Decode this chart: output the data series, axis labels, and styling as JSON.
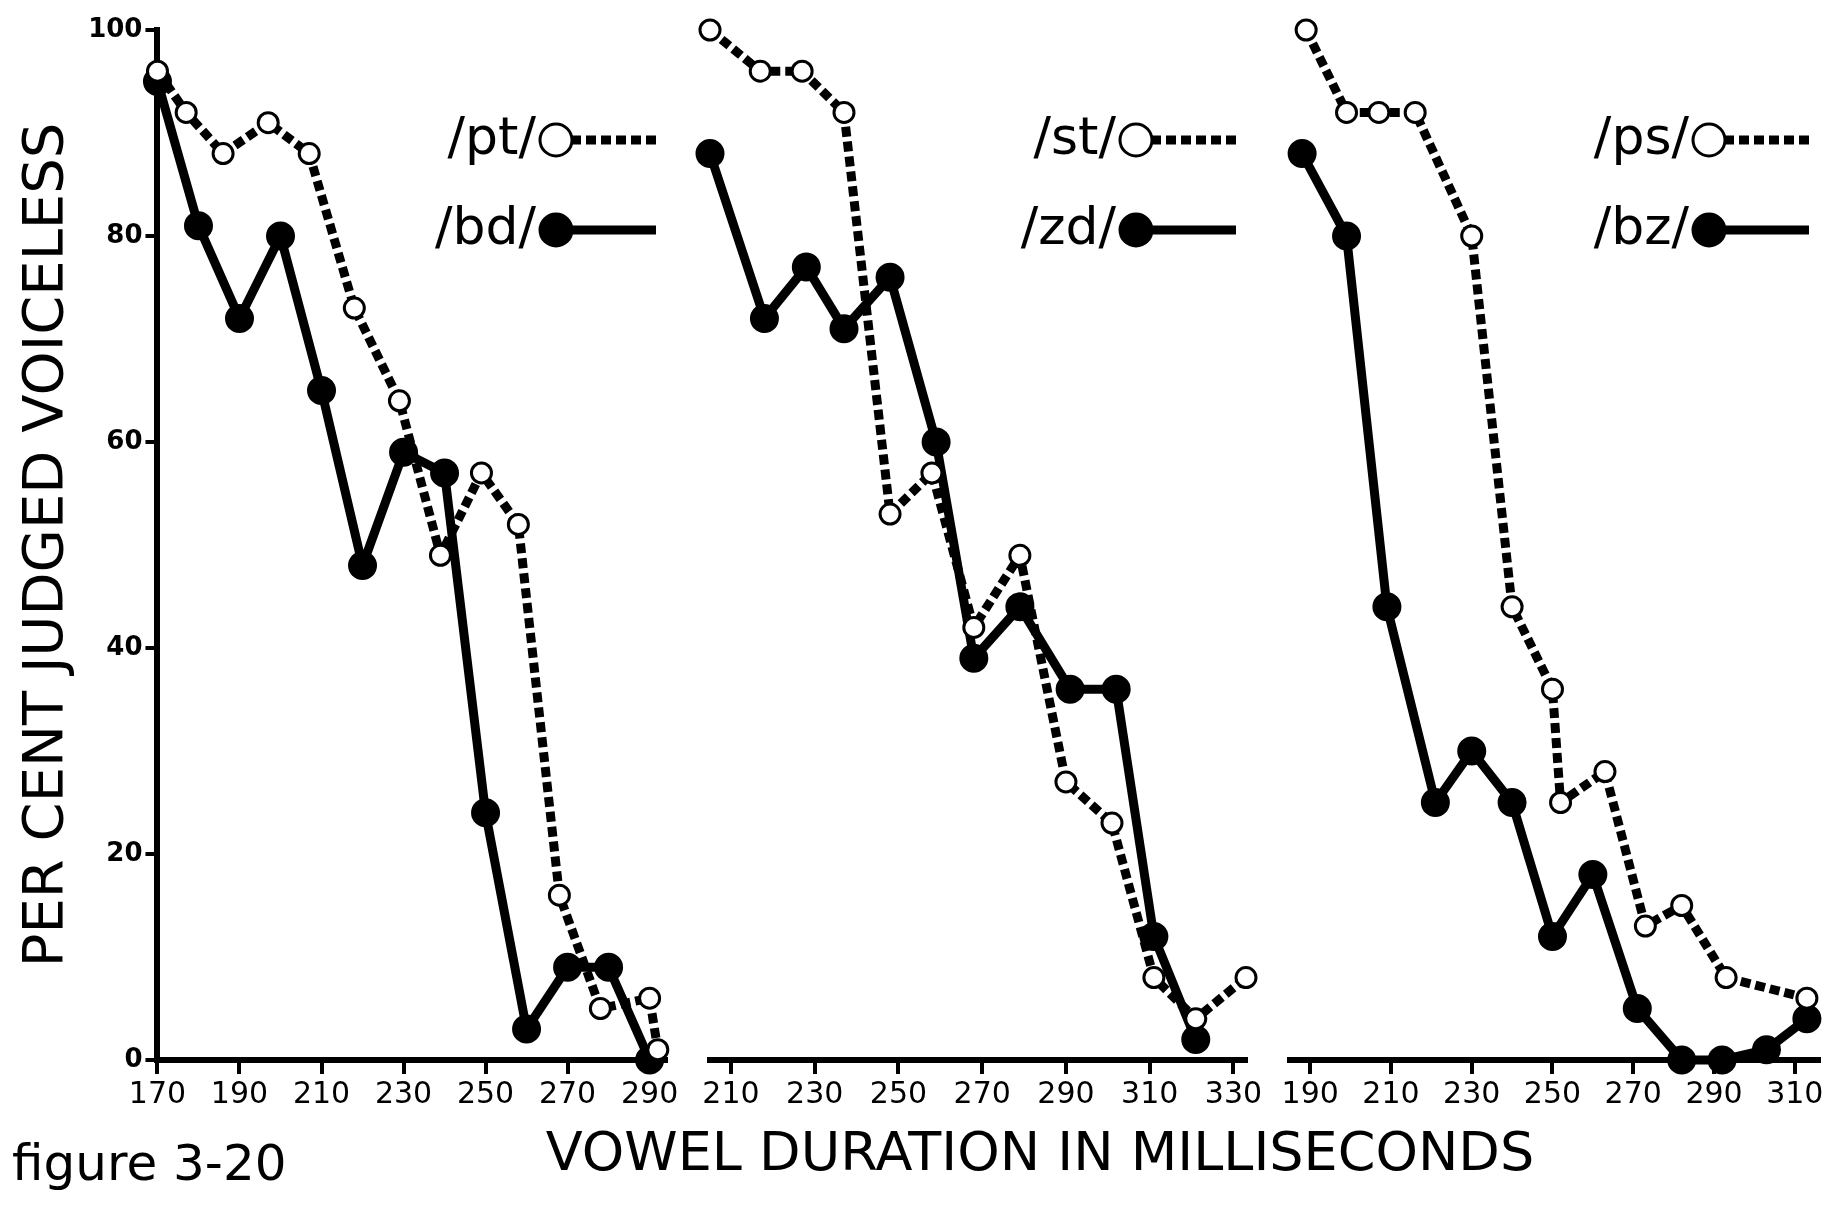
{
  "chart_data": [
    {
      "type": "line",
      "ylabel": "PER CENT JUDGED VOICELESS",
      "annotations": [
        "figure 3-20"
      ],
      "legend": "top right",
      "marker": "circle",
      "grid": false,
      "xlim": [
        170,
        294
      ],
      "xticks": [
        170,
        190,
        210,
        230,
        250,
        270,
        290
      ],
      "ylim": [
        0,
        100
      ],
      "yticks": [
        0,
        20,
        40,
        60,
        80,
        100
      ],
      "series": [
        {
          "name": "/pt/",
          "color": "#000000",
          "line_style": "dashed",
          "x": [
            170,
            177,
            186,
            197,
            207,
            218,
            229,
            239,
            249,
            258,
            268,
            278,
            290,
            292
          ],
          "values": [
            96,
            92,
            88,
            91,
            88,
            73,
            64,
            49,
            57,
            52,
            16,
            5,
            6,
            1
          ]
        },
        {
          "name": "/bd/",
          "color": "#000000",
          "line_style": "solid",
          "x": [
            170,
            180,
            190,
            200,
            210,
            220,
            230,
            240,
            250,
            260,
            270,
            280,
            290
          ],
          "values": [
            95,
            81,
            72,
            80,
            65,
            48,
            59,
            57,
            24,
            3,
            9,
            9,
            0
          ]
        }
      ]
    },
    {
      "type": "line",
      "xlabel": "VOWEL DURATION IN MILLISECONDS",
      "legend": "top right",
      "marker": "circle",
      "grid": false,
      "tick_labels": "x",
      "xlim": [
        205,
        333
      ],
      "xticks": [
        210,
        230,
        250,
        270,
        290,
        310,
        330
      ],
      "ylim": [
        0,
        100
      ],
      "series": [
        {
          "name": "/st/",
          "color": "#000000",
          "line_style": "dashed",
          "x": [
            205,
            217,
            227,
            237,
            248,
            258,
            268,
            279,
            290,
            301,
            311,
            321,
            333
          ],
          "values": [
            100,
            96,
            96,
            92,
            53,
            57,
            42,
            49,
            27,
            23,
            8,
            4,
            8
          ]
        },
        {
          "name": "/zd/",
          "color": "#000000",
          "line_style": "solid",
          "x": [
            205,
            218,
            228,
            237,
            248,
            259,
            268,
            279,
            291,
            302,
            311,
            321
          ],
          "values": [
            88,
            72,
            77,
            71,
            76,
            60,
            39,
            44,
            36,
            36,
            12,
            2
          ]
        }
      ]
    },
    {
      "type": "line",
      "legend": "top right",
      "marker": "circle",
      "grid": false,
      "tick_labels": "x",
      "xlim": [
        185,
        316
      ],
      "xticks": [
        190,
        210,
        230,
        250,
        270,
        290,
        310
      ],
      "ylim": [
        0,
        100
      ],
      "series": [
        {
          "name": "/ps/",
          "color": "#000000",
          "line_style": "dashed",
          "x": [
            189,
            199,
            207,
            216,
            230,
            240,
            250,
            252,
            263,
            273,
            282,
            293,
            313
          ],
          "values": [
            100,
            92,
            92,
            92,
            80,
            44,
            36,
            25,
            28,
            13,
            15,
            8,
            6
          ]
        },
        {
          "name": "/bz/",
          "color": "#000000",
          "line_style": "solid",
          "x": [
            188,
            199,
            209,
            221,
            230,
            240,
            250,
            260,
            271,
            282,
            292,
            303,
            313
          ],
          "values": [
            88,
            80,
            44,
            25,
            30,
            25,
            12,
            18,
            5,
            0,
            0,
            1,
            4
          ]
        }
      ]
    }
  ]
}
